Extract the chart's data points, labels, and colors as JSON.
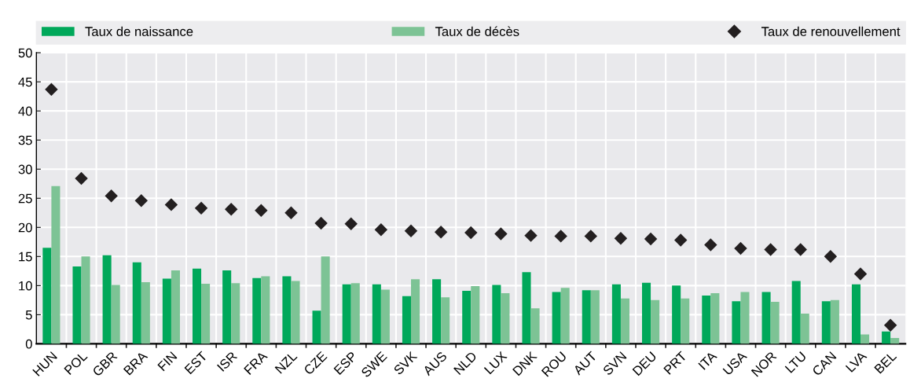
{
  "chart_data": {
    "type": "bar",
    "categories": [
      "HUN",
      "POL",
      "GBR",
      "BRA",
      "FIN",
      "EST",
      "ISR",
      "FRA",
      "NZL",
      "CZE",
      "ESP",
      "SWE",
      "SVK",
      "AUS",
      "NLD",
      "LUX",
      "DNK",
      "ROU",
      "AUT",
      "SVN",
      "DEU",
      "PRT",
      "ITA",
      "USA",
      "NOR",
      "LTU",
      "CAN",
      "LVA",
      "BEL"
    ],
    "series": [
      {
        "name": "Taux de naissance",
        "color": "#00a85a",
        "values": [
          16.5,
          13.3,
          15.2,
          14.0,
          11.2,
          12.9,
          12.6,
          11.3,
          11.6,
          5.7,
          10.2,
          10.2,
          8.2,
          11.1,
          9.1,
          10.1,
          12.3,
          8.9,
          9.2,
          10.2,
          10.5,
          10.0,
          8.3,
          7.3,
          8.9,
          10.8,
          7.3,
          10.2,
          2.1
        ]
      },
      {
        "name": "Taux de décès",
        "color": "#7dc395",
        "values": [
          27.1,
          15.0,
          10.1,
          10.6,
          12.6,
          10.3,
          10.4,
          11.6,
          10.8,
          15.0,
          10.4,
          9.3,
          11.1,
          8.0,
          9.9,
          8.7,
          6.1,
          9.6,
          9.2,
          7.8,
          7.5,
          7.8,
          8.7,
          8.9,
          7.2,
          5.2,
          7.5,
          1.6,
          1.0
        ]
      },
      {
        "name": "Taux de renouvellement",
        "type": "scatter",
        "marker": "diamond",
        "color": "#231f20",
        "values": [
          43.7,
          28.4,
          25.4,
          24.6,
          23.9,
          23.3,
          23.1,
          22.9,
          22.5,
          20.7,
          20.6,
          19.6,
          19.4,
          19.2,
          19.1,
          18.9,
          18.6,
          18.5,
          18.5,
          18.1,
          18.0,
          17.8,
          17.0,
          16.4,
          16.2,
          16.2,
          15.0,
          12.0,
          3.2
        ]
      }
    ],
    "ylim": [
      0,
      50
    ],
    "yticks": [
      0,
      5,
      10,
      15,
      20,
      25,
      30,
      35,
      40,
      45,
      50
    ],
    "grid": true,
    "legend": "top"
  }
}
